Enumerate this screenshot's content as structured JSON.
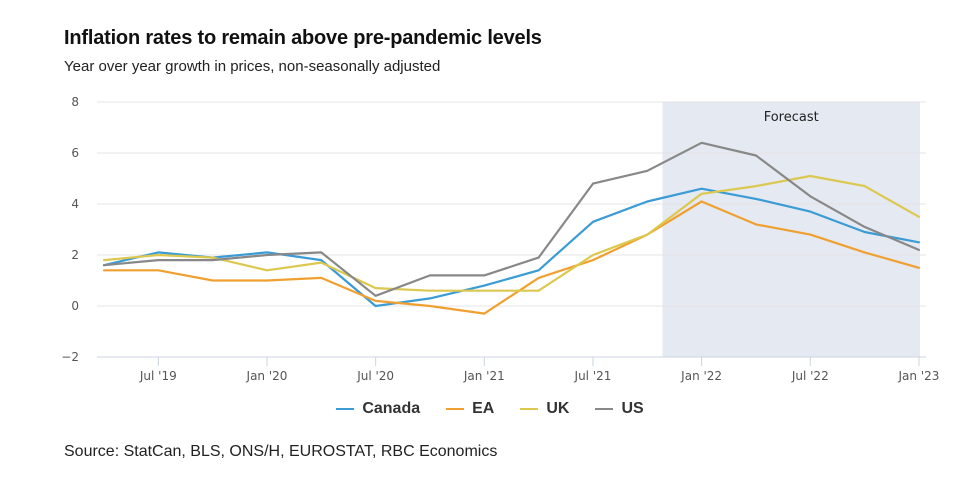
{
  "header": {
    "title": "Inflation rates to remain above pre-pandemic levels",
    "subtitle": "Year over year growth in prices, non-seasonally adjusted"
  },
  "footer": {
    "source": "Source: StatCan, BLS, ONS/H, EUROSTAT, RBC Economics"
  },
  "chart_data": {
    "type": "line",
    "title": "Inflation rates to remain above pre-pandemic levels",
    "subtitle": "Year over year growth in prices, non-seasonally adjusted",
    "xlabel": "",
    "ylabel": "",
    "x": [
      "Apr '19",
      "Jul '19",
      "Oct '19",
      "Jan '20",
      "Apr '20",
      "Jul '20",
      "Oct '20",
      "Jan '21",
      "Apr '21",
      "Jul '21",
      "Oct '21",
      "Jan '22",
      "Apr '22",
      "Jul '22",
      "Oct '22",
      "Jan '23"
    ],
    "x_ticks": [
      "Jul '19",
      "Jan '20",
      "Jul '20",
      "Jan '21",
      "Jul '21",
      "Jan '22",
      "Jul '22",
      "Jan '23"
    ],
    "y_ticks": [
      -2,
      0,
      2,
      4,
      6,
      8
    ],
    "y_tick_labels": [
      "−2",
      "0",
      "2",
      "4",
      "6",
      "8"
    ],
    "ylim": [
      -2,
      8
    ],
    "grid": true,
    "legend": "bottom-center",
    "forecast_band": {
      "label": "Forecast",
      "from": "Nov '21",
      "to": "Jan '23",
      "color": "#e5e9f2"
    },
    "series": [
      {
        "name": "Canada",
        "color": "#3a9bd5",
        "values": [
          1.6,
          2.1,
          1.9,
          2.1,
          1.8,
          0.0,
          0.3,
          0.8,
          1.4,
          3.3,
          4.1,
          4.6,
          4.2,
          3.7,
          2.9,
          2.5
        ]
      },
      {
        "name": "EA",
        "color": "#f0a030",
        "values": [
          1.4,
          1.4,
          1.0,
          1.0,
          1.1,
          0.2,
          0.0,
          -0.3,
          1.1,
          1.8,
          2.8,
          4.1,
          3.2,
          2.8,
          2.1,
          1.5
        ]
      },
      {
        "name": "UK",
        "color": "#dcc84e",
        "values": [
          1.8,
          2.0,
          1.9,
          1.4,
          1.7,
          0.7,
          0.6,
          0.6,
          0.6,
          2.0,
          2.8,
          4.4,
          4.7,
          5.1,
          4.7,
          3.5
        ]
      },
      {
        "name": "US",
        "color": "#888888",
        "values": [
          1.6,
          1.8,
          1.8,
          2.0,
          2.1,
          0.4,
          1.2,
          1.2,
          1.9,
          4.8,
          5.3,
          6.4,
          5.9,
          4.3,
          3.1,
          2.2
        ]
      }
    ]
  }
}
